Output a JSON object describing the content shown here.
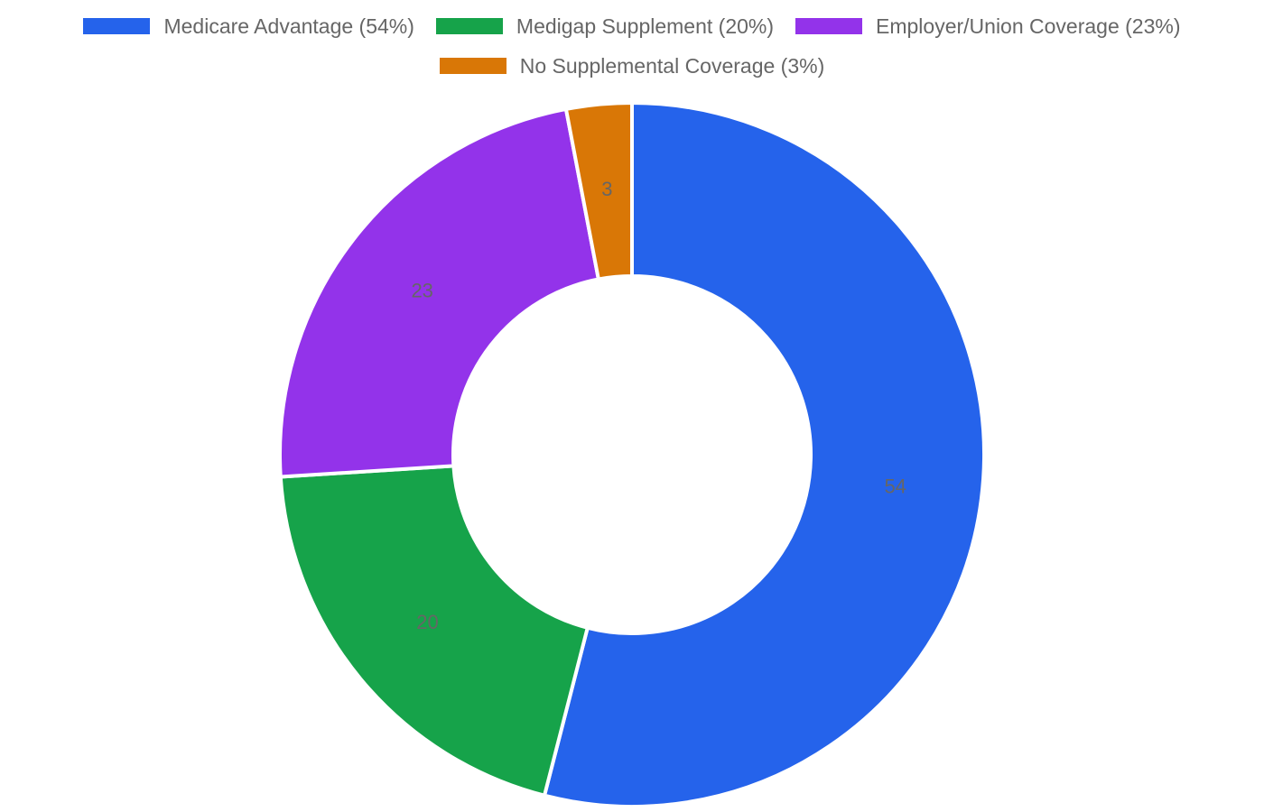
{
  "chart_data": {
    "type": "pie",
    "variant": "donut",
    "legend_position": "top",
    "categories": [
      "Medicare Advantage (54%)",
      "Medigap Supplement (20%)",
      "Employer/Union Coverage (23%)",
      "No Supplemental Coverage (3%)"
    ],
    "values": [
      54,
      20,
      23,
      3
    ],
    "data_labels": [
      "54",
      "20",
      "23",
      "3"
    ],
    "colors": [
      "#2563eb",
      "#16a34a",
      "#9333ea",
      "#d97706"
    ]
  }
}
